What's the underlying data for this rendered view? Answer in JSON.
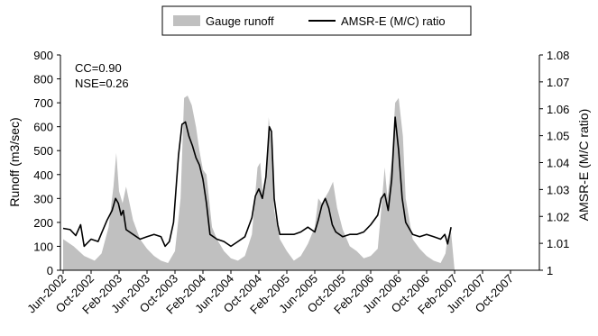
{
  "chart_data": {
    "type": "area+line",
    "legend": {
      "position": "top",
      "entries": [
        {
          "label": "Gauge runoff",
          "style": "area",
          "color": "#c0c0c0"
        },
        {
          "label": "AMSR-E (M/C) ratio",
          "style": "line",
          "color": "#000000"
        }
      ]
    },
    "annotations": [
      "CC=0.90",
      "NSE=0.26"
    ],
    "ylabel_left": "Runoff (m3/sec)",
    "ylabel_right": "AMSR-E (M/C ratio)",
    "y_left": {
      "min": 0,
      "max": 900,
      "ticks": [
        "0",
        "100",
        "200",
        "300",
        "400",
        "500",
        "600",
        "700",
        "800",
        "900"
      ]
    },
    "y_right": {
      "min": 1,
      "max": 1.08,
      "ticks": [
        "1",
        "1.01",
        "1.02",
        "1.03",
        "1.04",
        "1.05",
        "1.06",
        "1.07",
        "1.08"
      ]
    },
    "x_labels": [
      "Jun-2002",
      "Oct-2002",
      "Feb-2003",
      "Jun-2003",
      "Oct-2003",
      "Feb-2004",
      "Jun-2004",
      "Oct-2004",
      "Feb-2005",
      "Jun-2005",
      "Oct-2005",
      "Feb-2006",
      "Jun-2006",
      "Oct-2006",
      "Feb-2007",
      "Jun-2007",
      "Oct-2007"
    ],
    "x_range_months": [
      0,
      68
    ],
    "series": [
      {
        "name": "Gauge runoff",
        "type": "area",
        "color": "#c0c0c0",
        "points": [
          [
            0,
            130
          ],
          [
            1.5,
            100
          ],
          [
            3,
            60
          ],
          [
            4.5,
            40
          ],
          [
            5.5,
            70
          ],
          [
            6.5,
            180
          ],
          [
            7.2,
            350
          ],
          [
            7.6,
            490
          ],
          [
            8,
            330
          ],
          [
            8.5,
            280
          ],
          [
            9,
            350
          ],
          [
            10,
            210
          ],
          [
            11,
            130
          ],
          [
            12,
            90
          ],
          [
            13,
            60
          ],
          [
            14,
            40
          ],
          [
            15,
            30
          ],
          [
            16,
            80
          ],
          [
            16.8,
            300
          ],
          [
            17.3,
            720
          ],
          [
            17.8,
            730
          ],
          [
            18.4,
            690
          ],
          [
            19,
            600
          ],
          [
            19.5,
            500
          ],
          [
            20,
            420
          ],
          [
            20.5,
            400
          ],
          [
            21.3,
            180
          ],
          [
            22,
            130
          ],
          [
            23,
            80
          ],
          [
            24,
            50
          ],
          [
            25,
            40
          ],
          [
            26,
            60
          ],
          [
            27,
            150
          ],
          [
            27.8,
            430
          ],
          [
            28.2,
            450
          ],
          [
            28.6,
            300
          ],
          [
            29,
            380
          ],
          [
            29.4,
            640
          ],
          [
            29.8,
            520
          ],
          [
            30.2,
            250
          ],
          [
            31,
            130
          ],
          [
            32,
            80
          ],
          [
            33,
            40
          ],
          [
            34,
            60
          ],
          [
            35,
            110
          ],
          [
            36,
            180
          ],
          [
            36.5,
            300
          ],
          [
            37,
            280
          ],
          [
            38,
            330
          ],
          [
            38.6,
            370
          ],
          [
            39.2,
            260
          ],
          [
            40,
            170
          ],
          [
            41,
            100
          ],
          [
            42,
            80
          ],
          [
            43,
            50
          ],
          [
            44,
            60
          ],
          [
            45,
            90
          ],
          [
            45.5,
            250
          ],
          [
            46,
            430
          ],
          [
            46.4,
            300
          ],
          [
            47,
            460
          ],
          [
            47.5,
            700
          ],
          [
            48,
            720
          ],
          [
            48.6,
            560
          ],
          [
            49,
            300
          ],
          [
            50,
            130
          ],
          [
            51,
            90
          ],
          [
            52,
            60
          ],
          [
            53,
            40
          ],
          [
            54,
            30
          ],
          [
            54.7,
            70
          ],
          [
            55,
            140
          ],
          [
            55.5,
            160
          ],
          [
            56,
            0
          ]
        ]
      },
      {
        "name": "AMSR-E (M/C) ratio",
        "type": "line",
        "color": "#000000",
        "points": [
          [
            0,
            175
          ],
          [
            1,
            170
          ],
          [
            1.8,
            145
          ],
          [
            2.5,
            190
          ],
          [
            3,
            100
          ],
          [
            4,
            130
          ],
          [
            5,
            120
          ],
          [
            5.5,
            155
          ],
          [
            6.3,
            210
          ],
          [
            7,
            250
          ],
          [
            7.5,
            300
          ],
          [
            7.9,
            280
          ],
          [
            8.3,
            230
          ],
          [
            8.6,
            250
          ],
          [
            9,
            170
          ],
          [
            9.5,
            160
          ],
          [
            10,
            150
          ],
          [
            11,
            130
          ],
          [
            12,
            140
          ],
          [
            13,
            150
          ],
          [
            14,
            140
          ],
          [
            14.6,
            100
          ],
          [
            15.2,
            120
          ],
          [
            15.8,
            200
          ],
          [
            16.5,
            480
          ],
          [
            17,
            610
          ],
          [
            17.5,
            620
          ],
          [
            18,
            560
          ],
          [
            18.5,
            520
          ],
          [
            19,
            470
          ],
          [
            19.5,
            440
          ],
          [
            20,
            380
          ],
          [
            20.5,
            280
          ],
          [
            21,
            150
          ],
          [
            22,
            130
          ],
          [
            23,
            120
          ],
          [
            24,
            100
          ],
          [
            25,
            120
          ],
          [
            26,
            140
          ],
          [
            27,
            220
          ],
          [
            27.5,
            310
          ],
          [
            28,
            340
          ],
          [
            28.5,
            300
          ],
          [
            29,
            390
          ],
          [
            29.5,
            600
          ],
          [
            29.8,
            580
          ],
          [
            30.2,
            300
          ],
          [
            30.7,
            190
          ],
          [
            31,
            150
          ],
          [
            32,
            150
          ],
          [
            33,
            150
          ],
          [
            34,
            160
          ],
          [
            35,
            180
          ],
          [
            36,
            160
          ],
          [
            36.5,
            210
          ],
          [
            37,
            270
          ],
          [
            37.5,
            300
          ],
          [
            38,
            260
          ],
          [
            38.5,
            190
          ],
          [
            39,
            160
          ],
          [
            40,
            140
          ],
          [
            41,
            150
          ],
          [
            42,
            150
          ],
          [
            43,
            160
          ],
          [
            44,
            190
          ],
          [
            45,
            230
          ],
          [
            45.5,
            300
          ],
          [
            46,
            320
          ],
          [
            46.5,
            250
          ],
          [
            47,
            380
          ],
          [
            47.5,
            640
          ],
          [
            48,
            500
          ],
          [
            48.5,
            300
          ],
          [
            49,
            200
          ],
          [
            50,
            150
          ],
          [
            51,
            140
          ],
          [
            52,
            150
          ],
          [
            53,
            140
          ],
          [
            54,
            130
          ],
          [
            54.6,
            150
          ],
          [
            55,
            110
          ],
          [
            55.5,
            180
          ]
        ]
      }
    ]
  }
}
